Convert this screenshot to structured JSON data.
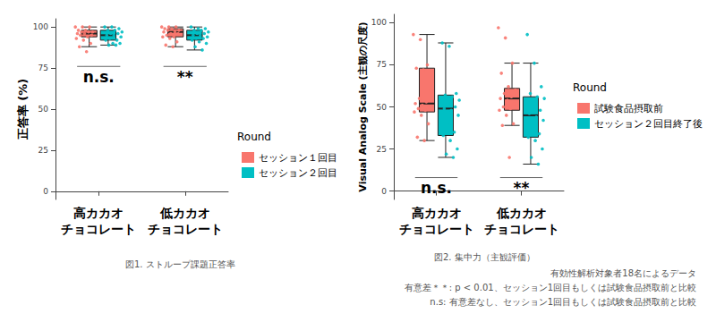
{
  "chart_data": [
    {
      "type": "boxplot",
      "y_label": "正答率 (%)",
      "categories": [
        "高カカオ\nチョコレート",
        "低カカオ\nチョコレート"
      ],
      "ylim": [
        -5,
        105
      ],
      "yticks": [
        0,
        25,
        50,
        75,
        100
      ],
      "grid": false,
      "legend": "right",
      "legend_title": "Round",
      "series": [
        {
          "name": "セッション１回目",
          "color": "#F8766D",
          "boxes": [
            {
              "min": 88,
              "q1": 94,
              "median": 96,
              "q3": 98,
              "max": 100
            },
            {
              "min": 88,
              "q1": 94,
              "median": 97,
              "q3": 99,
              "max": 100
            }
          ],
          "points": [
            [
              100,
              100,
              100,
              98,
              98,
              97,
              97,
              97,
              96,
              96,
              95,
              95,
              94,
              93,
              92,
              90,
              88,
              85
            ],
            [
              100,
              100,
              100,
              99,
              99,
              98,
              98,
              97,
              97,
              96,
              96,
              95,
              94,
              94,
              93,
              91,
              89,
              88
            ]
          ]
        },
        {
          "name": "セッション２回目",
          "color": "#00BFC4",
          "boxes": [
            {
              "min": 89,
              "q1": 92,
              "median": 95,
              "q3": 98,
              "max": 100
            },
            {
              "min": 86,
              "q1": 92,
              "median": 95,
              "q3": 98,
              "max": 100
            }
          ],
          "points": [
            [
              100,
              100,
              99,
              98,
              98,
              97,
              96,
              96,
              95,
              95,
              94,
              93,
              92,
              92,
              90,
              90,
              89,
              89
            ],
            [
              100,
              99,
              99,
              98,
              98,
              97,
              96,
              96,
              95,
              95,
              94,
              93,
              93,
              92,
              91,
              90,
              88,
              86
            ]
          ]
        }
      ],
      "annotations": [
        {
          "category": 0,
          "y": 76,
          "label": "n.s."
        },
        {
          "category": 1,
          "y": 76,
          "label": "**"
        }
      ],
      "caption": "図1. ストループ課題正答率"
    },
    {
      "type": "boxplot",
      "y_label": "Visual Analog Scale (主観の尺度)",
      "categories": [
        "高カカオ\nチョコレート",
        "低カカオ\nチョコレート"
      ],
      "ylim": [
        -5,
        105
      ],
      "yticks": [
        0,
        25,
        50,
        75,
        100
      ],
      "grid": false,
      "legend": "right",
      "legend_title": "Round",
      "series": [
        {
          "name": "試験食品摂取前",
          "color": "#F8766D",
          "boxes": [
            {
              "min": 30,
              "q1": 47,
              "median": 52,
              "q3": 73,
              "max": 93
            },
            {
              "min": 39,
              "q1": 48,
              "median": 55,
              "q3": 61,
              "max": 76
            }
          ],
          "points": [
            [
              93,
              90,
              75,
              73,
              72,
              60,
              55,
              53,
              52,
              51,
              50,
              49,
              48,
              47,
              45,
              40,
              32,
              30
            ],
            [
              97,
              91,
              76,
              70,
              62,
              60,
              58,
              56,
              55,
              54,
              52,
              50,
              49,
              48,
              45,
              40,
              39,
              20
            ]
          ]
        },
        {
          "name": "セッション２回目終了後",
          "color": "#00BFC4",
          "boxes": [
            {
              "min": 20,
              "q1": 33,
              "median": 49,
              "q3": 57,
              "max": 88
            },
            {
              "min": 16,
              "q1": 32,
              "median": 45,
              "q3": 56,
              "max": 76
            }
          ],
          "points": [
            [
              88,
              86,
              58,
              57,
              56,
              54,
              52,
              50,
              49,
              48,
              45,
              40,
              35,
              33,
              30,
              25,
              22,
              20
            ],
            [
              93,
              76,
              62,
              58,
              56,
              55,
              50,
              48,
              46,
              44,
              42,
              38,
              34,
              32,
              30,
              25,
              20,
              16
            ]
          ]
        }
      ],
      "annotations": [
        {
          "category": 0,
          "y": 8,
          "label": "n.s."
        },
        {
          "category": 1,
          "y": 8,
          "label": "**"
        }
      ],
      "caption": "図2. 集中力（主観評価）",
      "notes": [
        "有効性解析対象者18名によるデータ",
        "有意差＊＊: p < 0.01、セッション1回目もしくは試験食品摂取前と比較",
        "n.s: 有意差なし、セッション1回目もしくは試験食品摂取前と比較"
      ]
    }
  ]
}
